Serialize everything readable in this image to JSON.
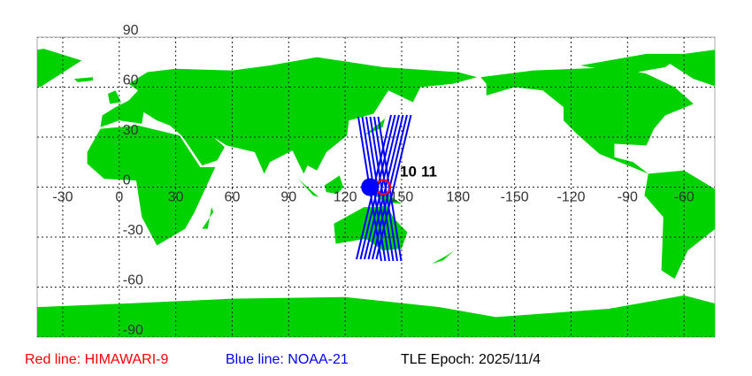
{
  "map": {
    "projection": "equirectangular",
    "land_color": "#00d200",
    "ocean_color": "#ffffff",
    "grid": true,
    "lon_labels": [
      "-30",
      "0",
      "30",
      "60",
      "90",
      "120",
      "150",
      "180",
      "-150",
      "-120",
      "-90",
      "-60"
    ],
    "lat_labels": [
      "90",
      "60",
      "30",
      "0",
      "-30",
      "-60",
      "-90"
    ],
    "satellites": [
      {
        "name": "HIMAWARI-9",
        "color": "#ff0000",
        "lon": 140.7,
        "lat": 0,
        "label": "10"
      },
      {
        "name": "NOAA-21",
        "color": "#0000ff",
        "lon": 136,
        "lat": 0,
        "label": "11"
      }
    ]
  },
  "legend": {
    "red": {
      "text": "Red line: HIMAWARI-9",
      "color": "#ff0000"
    },
    "blue": {
      "text": "Blue line: NOAA-21",
      "color": "#0000ff"
    },
    "epoch": {
      "text": "TLE Epoch: 2025/11/4",
      "color": "#000000"
    }
  }
}
